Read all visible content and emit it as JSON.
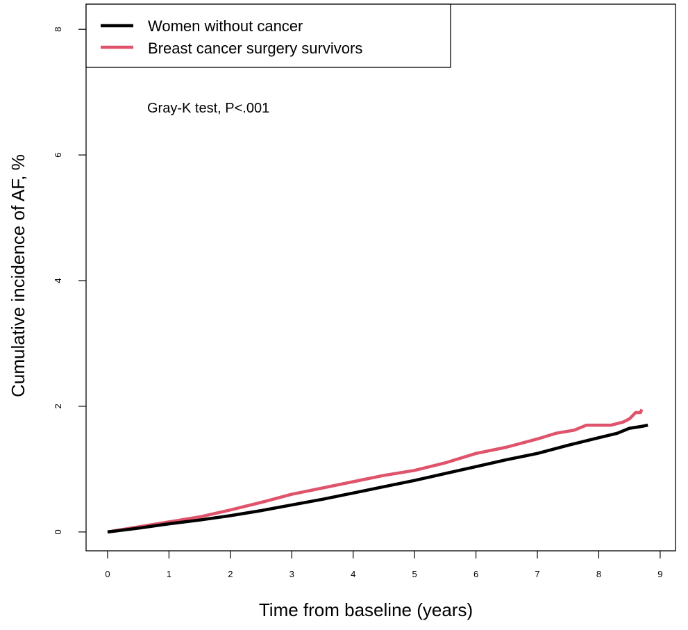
{
  "chart_data": {
    "type": "line",
    "title": "",
    "xlabel": "Time from baseline (years)",
    "ylabel": "Cumulative incidence of AF, %",
    "xlim": [
      -0.35,
      9.25
    ],
    "ylim": [
      -0.3,
      8.4
    ],
    "x_ticks": [
      0,
      1,
      2,
      3,
      4,
      5,
      6,
      7,
      8,
      9
    ],
    "y_ticks": [
      0,
      2,
      4,
      6,
      8
    ],
    "grid": false,
    "legend_position": "top-left",
    "annotation": "Gray-K test, P<.001",
    "series": [
      {
        "name": "Women without cancer",
        "color": "#000000",
        "x": [
          0,
          0.5,
          1,
          1.5,
          2,
          2.5,
          3,
          3.5,
          4,
          4.5,
          5,
          5.5,
          6,
          6.5,
          7,
          7.5,
          8,
          8.3,
          8.5,
          8.7,
          8.8
        ],
        "y": [
          0,
          0.06,
          0.13,
          0.19,
          0.26,
          0.34,
          0.43,
          0.52,
          0.62,
          0.72,
          0.82,
          0.93,
          1.04,
          1.15,
          1.25,
          1.38,
          1.5,
          1.57,
          1.65,
          1.68,
          1.7
        ]
      },
      {
        "name": "Breast cancer surgery survivors",
        "color": "#df536b",
        "x": [
          0,
          0.5,
          1,
          1.5,
          2,
          2.5,
          3,
          3.5,
          4,
          4.5,
          5,
          5.5,
          6,
          6.5,
          7,
          7.3,
          7.6,
          7.8,
          8.2,
          8.4,
          8.5,
          8.6,
          8.68,
          8.7
        ],
        "y": [
          0,
          0.08,
          0.16,
          0.24,
          0.35,
          0.47,
          0.6,
          0.7,
          0.8,
          0.9,
          0.98,
          1.1,
          1.25,
          1.35,
          1.48,
          1.57,
          1.62,
          1.7,
          1.7,
          1.75,
          1.8,
          1.9,
          1.9,
          1.95
        ]
      }
    ]
  }
}
